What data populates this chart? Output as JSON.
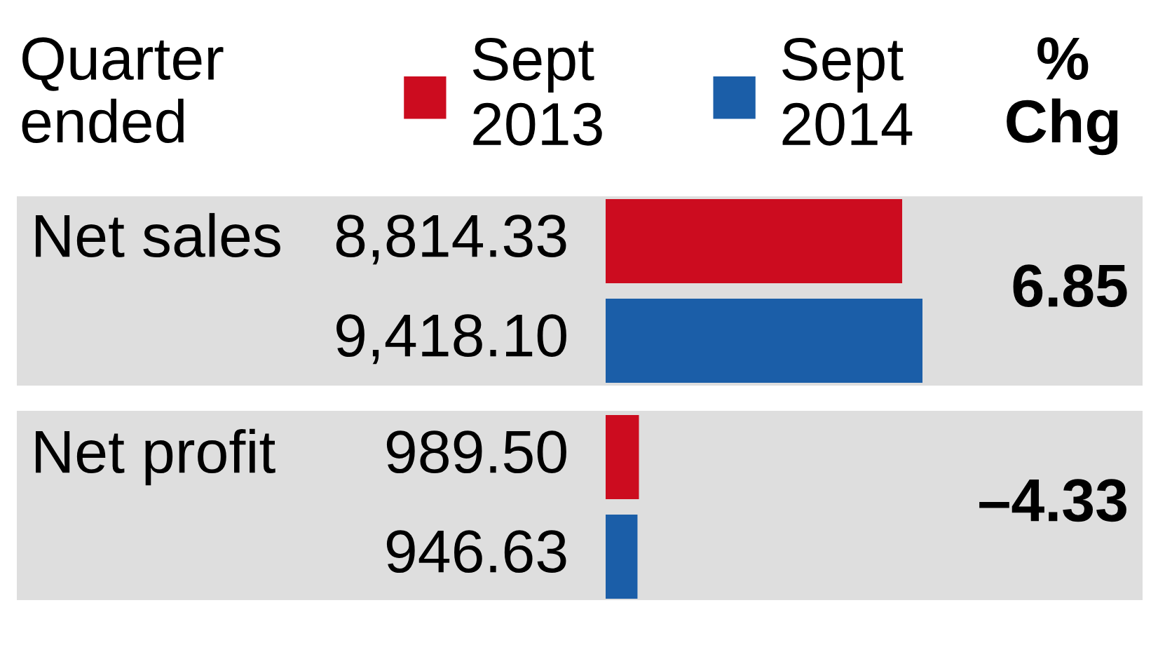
{
  "chart_data": {
    "type": "bar",
    "orientation": "horizontal",
    "title": "Quarter ended",
    "categories": [
      "Net sales",
      "Net profit"
    ],
    "series": [
      {
        "name": "Sept 2013",
        "color": "#cc0c1f",
        "values": [
          8814.33,
          989.5
        ],
        "value_labels": [
          "8,814.33",
          "989.50"
        ]
      },
      {
        "name": "Sept 2014",
        "color": "#1b5ea8",
        "values": [
          9418.1,
          946.63
        ],
        "value_labels": [
          "9,418.10",
          "946.63"
        ]
      }
    ],
    "annotations": [
      "% Chg",
      "6.85",
      "–4.33"
    ],
    "legend": "top"
  }
}
